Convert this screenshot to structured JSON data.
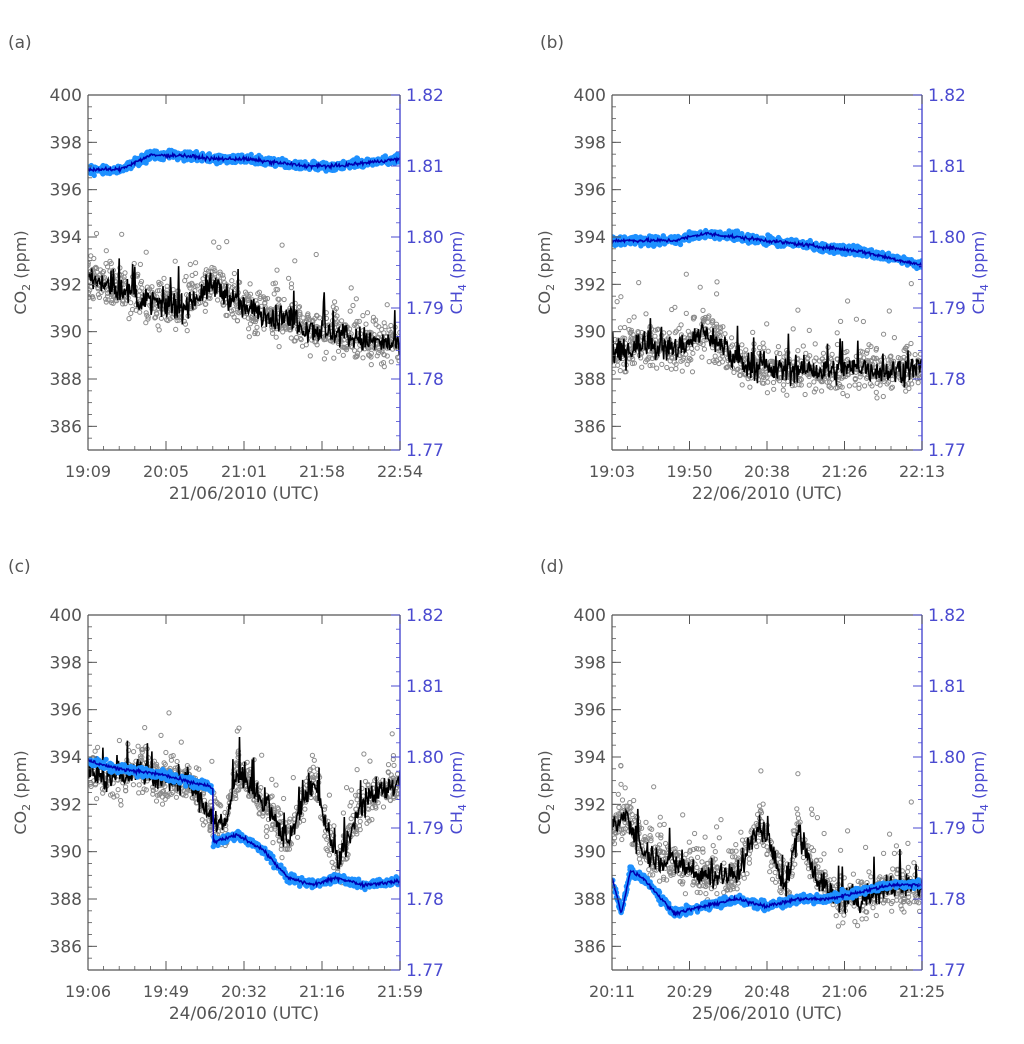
{
  "figure": {
    "axis_colors": {
      "left": "#555555",
      "right": "#4a4ad0"
    },
    "series_colors": {
      "co2_raw": "#8a8a8a",
      "co2_smoothed": "#000000",
      "ch4_raw": "#1e90ff",
      "ch4_smoothed": "#0000b0"
    }
  },
  "chart_data": [
    {
      "type": "line",
      "panel_label": "(a)",
      "xlabel": "21/06/2010 (UTC)",
      "x_ticks": [
        "19:09",
        "20:05",
        "21:01",
        "21:58",
        "22:54"
      ],
      "x_range": [
        "19:09",
        "22:54"
      ],
      "ylabel_left": {
        "main": "CO",
        "sub": "2",
        "unit": " (ppm)"
      },
      "ylabel_right": {
        "main": "CH",
        "sub": "4",
        "unit": " (ppm)"
      },
      "y_left_ticks": [
        "386",
        "388",
        "390",
        "392",
        "394",
        "396",
        "398",
        "400"
      ],
      "y_right_ticks": [
        "1.77",
        "1.78",
        "1.79",
        "1.80",
        "1.81",
        "1.82"
      ],
      "ylim_left": [
        385,
        400
      ],
      "ylim_right": [
        1.77,
        1.82
      ],
      "series": [
        {
          "name": "CO2 (ppm)",
          "axis": "left",
          "x_fraction": [
            0,
            0.1,
            0.2,
            0.3,
            0.4,
            0.5,
            0.6,
            0.7,
            0.8,
            0.9,
            1.0
          ],
          "values": [
            392.2,
            391.8,
            391.2,
            391.0,
            392.0,
            391.0,
            390.6,
            390.2,
            389.9,
            389.6,
            389.4
          ]
        },
        {
          "name": "CH4 (ppm)",
          "axis": "right",
          "x_fraction": [
            0,
            0.1,
            0.2,
            0.3,
            0.4,
            0.5,
            0.6,
            0.7,
            0.8,
            0.9,
            1.0
          ],
          "values": [
            1.8095,
            1.8095,
            1.8115,
            1.8115,
            1.811,
            1.811,
            1.8105,
            1.81,
            1.81,
            1.8105,
            1.811
          ]
        }
      ]
    },
    {
      "type": "line",
      "panel_label": "(b)",
      "xlabel": "22/06/2010 (UTC)",
      "x_ticks": [
        "19:03",
        "19:50",
        "20:38",
        "21:26",
        "22:13"
      ],
      "x_range": [
        "19:03",
        "22:13"
      ],
      "ylabel_left": {
        "main": "CO",
        "sub": "2",
        "unit": " (ppm)"
      },
      "ylabel_right": {
        "main": "CH",
        "sub": "4",
        "unit": " (ppm)"
      },
      "y_left_ticks": [
        "386",
        "388",
        "390",
        "392",
        "394",
        "396",
        "398",
        "400"
      ],
      "y_right_ticks": [
        "1.77",
        "1.78",
        "1.79",
        "1.80",
        "1.81",
        "1.82"
      ],
      "ylim_left": [
        385,
        400
      ],
      "ylim_right": [
        1.77,
        1.82
      ],
      "series": [
        {
          "name": "CO2 (ppm)",
          "axis": "left",
          "x_fraction": [
            0,
            0.1,
            0.2,
            0.3,
            0.4,
            0.5,
            0.6,
            0.7,
            0.8,
            0.9,
            1.0
          ],
          "values": [
            389.0,
            389.5,
            389.2,
            390.0,
            388.8,
            388.4,
            388.4,
            388.3,
            388.5,
            388.3,
            388.5
          ]
        },
        {
          "name": "CH4 (ppm)",
          "axis": "right",
          "x_fraction": [
            0,
            0.1,
            0.2,
            0.3,
            0.4,
            0.5,
            0.6,
            0.7,
            0.8,
            0.9,
            1.0
          ],
          "values": [
            1.7995,
            1.7995,
            1.7995,
            1.8005,
            1.8,
            1.7995,
            1.799,
            1.7985,
            1.798,
            1.797,
            1.796
          ]
        }
      ]
    },
    {
      "type": "line",
      "panel_label": "(c)",
      "xlabel": "24/06/2010 (UTC)",
      "x_ticks": [
        "19:06",
        "19:49",
        "20:32",
        "21:16",
        "21:59"
      ],
      "x_range": [
        "19:06",
        "21:59"
      ],
      "ylabel_left": {
        "main": "CO",
        "sub": "2",
        "unit": " (ppm)"
      },
      "ylabel_right": {
        "main": "CH",
        "sub": "4",
        "unit": " (ppm)"
      },
      "y_left_ticks": [
        "386",
        "388",
        "390",
        "392",
        "394",
        "396",
        "398",
        "400"
      ],
      "y_right_ticks": [
        "1.77",
        "1.78",
        "1.79",
        "1.80",
        "1.81",
        "1.82"
      ],
      "ylim_left": [
        385,
        400
      ],
      "ylim_right": [
        1.77,
        1.82
      ],
      "series": [
        {
          "name": "CO2 (ppm)",
          "axis": "left",
          "x_fraction": [
            0,
            0.08,
            0.16,
            0.24,
            0.32,
            0.4,
            0.44,
            0.48,
            0.56,
            0.64,
            0.72,
            0.8,
            0.88,
            0.94,
            1.0
          ],
          "values": [
            393.5,
            393.0,
            393.5,
            393.0,
            393.0,
            391.5,
            391.0,
            393.5,
            392.0,
            390.5,
            393.0,
            389.5,
            392.0,
            392.5,
            393.0
          ]
        },
        {
          "name": "CH4 (ppm)",
          "axis": "right",
          "x_fraction": [
            0,
            0.08,
            0.16,
            0.24,
            0.32,
            0.38,
            0.4,
            0.4,
            0.48,
            0.56,
            0.64,
            0.72,
            0.8,
            0.88,
            1.0
          ],
          "values": [
            1.7995,
            1.7985,
            1.798,
            1.7975,
            1.7965,
            1.796,
            1.7955,
            1.788,
            1.789,
            1.787,
            1.783,
            1.782,
            1.783,
            1.782,
            1.7825
          ]
        }
      ]
    },
    {
      "type": "line",
      "panel_label": "(d)",
      "xlabel": "25/06/2010 (UTC)",
      "x_ticks": [
        "20:11",
        "20:29",
        "20:48",
        "21:06",
        "21:25"
      ],
      "x_range": [
        "20:11",
        "21:25"
      ],
      "ylabel_left": {
        "main": "CO",
        "sub": "2",
        "unit": " (ppm)"
      },
      "ylabel_right": {
        "main": "CH",
        "sub": "4",
        "unit": " (ppm)"
      },
      "y_left_ticks": [
        "386",
        "388",
        "390",
        "392",
        "394",
        "396",
        "398",
        "400"
      ],
      "y_right_ticks": [
        "1.77",
        "1.78",
        "1.79",
        "1.80",
        "1.81",
        "1.82"
      ],
      "ylim_left": [
        385,
        400
      ],
      "ylim_right": [
        1.77,
        1.82
      ],
      "series": [
        {
          "name": "CO2 (ppm)",
          "axis": "left",
          "x_fraction": [
            0,
            0.05,
            0.1,
            0.2,
            0.3,
            0.4,
            0.48,
            0.56,
            0.6,
            0.66,
            0.72,
            0.8,
            0.9,
            1.0
          ],
          "values": [
            391.0,
            391.5,
            390.0,
            389.5,
            389.0,
            389.0,
            391.2,
            388.5,
            390.8,
            389.0,
            388.0,
            388.0,
            388.5,
            388.5
          ]
        },
        {
          "name": "CH4 (ppm)",
          "axis": "right",
          "x_fraction": [
            0,
            0.03,
            0.06,
            0.1,
            0.2,
            0.3,
            0.4,
            0.5,
            0.6,
            0.7,
            0.8,
            0.9,
            1.0
          ],
          "values": [
            1.783,
            1.778,
            1.784,
            1.783,
            1.778,
            1.779,
            1.78,
            1.779,
            1.78,
            1.78,
            1.781,
            1.782,
            1.782
          ]
        }
      ]
    }
  ]
}
